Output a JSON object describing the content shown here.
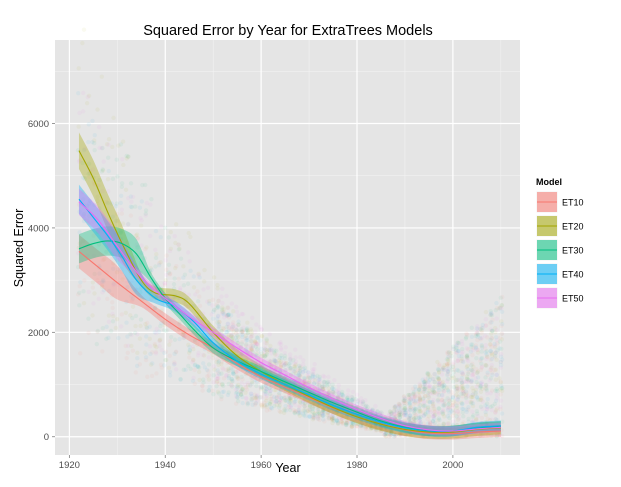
{
  "chart_data": {
    "type": "scatter",
    "title": "Squared Error by Year for ExtraTrees Models",
    "xlabel": "Year",
    "ylabel": "Squared Error",
    "xlim": [
      1917,
      2014
    ],
    "ylim": [
      -350,
      7600
    ],
    "x_ticks": [
      1920,
      1940,
      1960,
      1980,
      2000
    ],
    "y_ticks": [
      0,
      2000,
      4000,
      6000
    ],
    "grid": true,
    "legend_placement": "right",
    "legend_title": "Model",
    "series": [
      {
        "name": "ET10",
        "color": "#F8766D",
        "smooth_x": [
          1922,
          1926,
          1930,
          1935,
          1940,
          1945,
          1950,
          1955,
          1960,
          1965,
          1970,
          1975,
          1980,
          1985,
          1990,
          1995,
          2000,
          2005,
          2010
        ],
        "smooth_y": [
          3550,
          3250,
          2950,
          2600,
          2250,
          1950,
          1700,
          1400,
          1150,
          950,
          750,
          550,
          380,
          240,
          130,
          70,
          60,
          90,
          110
        ],
        "band": 230
      },
      {
        "name": "ET20",
        "color": "#A3A500",
        "smooth_x": [
          1922,
          1925,
          1928,
          1931,
          1935,
          1938,
          1942,
          1945,
          1950,
          1955,
          1960,
          1965,
          1970,
          1975,
          1980,
          1985,
          1990,
          1995,
          2000,
          2005,
          2010
        ],
        "smooth_y": [
          5480,
          4950,
          4300,
          3700,
          3000,
          2750,
          2700,
          2550,
          2000,
          1550,
          1250,
          1000,
          770,
          560,
          380,
          240,
          140,
          90,
          90,
          140,
          170
        ],
        "band": 250
      },
      {
        "name": "ET30",
        "color": "#00BF7D",
        "smooth_x": [
          1922,
          1925,
          1928,
          1931,
          1934,
          1937,
          1940,
          1943,
          1946,
          1950,
          1955,
          1960,
          1965,
          1970,
          1975,
          1980,
          1985,
          1990,
          1995,
          2000,
          2005,
          2010
        ],
        "smooth_y": [
          3600,
          3700,
          3750,
          3700,
          3500,
          3050,
          2650,
          2350,
          2050,
          1700,
          1450,
          1250,
          1050,
          850,
          650,
          470,
          300,
          180,
          110,
          110,
          170,
          200
        ],
        "band": 200
      },
      {
        "name": "ET40",
        "color": "#00B0F6",
        "smooth_x": [
          1922,
          1925,
          1928,
          1931,
          1934,
          1938,
          1942,
          1946,
          1950,
          1955,
          1960,
          1965,
          1970,
          1975,
          1980,
          1985,
          1990,
          1995,
          2000,
          2005,
          2010
        ],
        "smooth_y": [
          4550,
          4200,
          3850,
          3450,
          3000,
          2650,
          2500,
          2200,
          1800,
          1450,
          1200,
          1000,
          800,
          600,
          430,
          280,
          170,
          110,
          110,
          180,
          210
        ],
        "band": 200
      },
      {
        "name": "ET50",
        "color": "#E76BF3",
        "smooth_x": [
          1922,
          1926,
          1930,
          1935,
          1940,
          1945,
          1950,
          1955,
          1960,
          1965,
          1970,
          1975,
          1980,
          1985,
          1990,
          1995,
          2000,
          2005,
          2010
        ],
        "smooth_y": [
          4500,
          4150,
          3650,
          3050,
          2650,
          2300,
          2000,
          1700,
          1420,
          1180,
          940,
          720,
          520,
          350,
          210,
          130,
          110,
          150,
          180
        ],
        "band": 180
      }
    ]
  }
}
